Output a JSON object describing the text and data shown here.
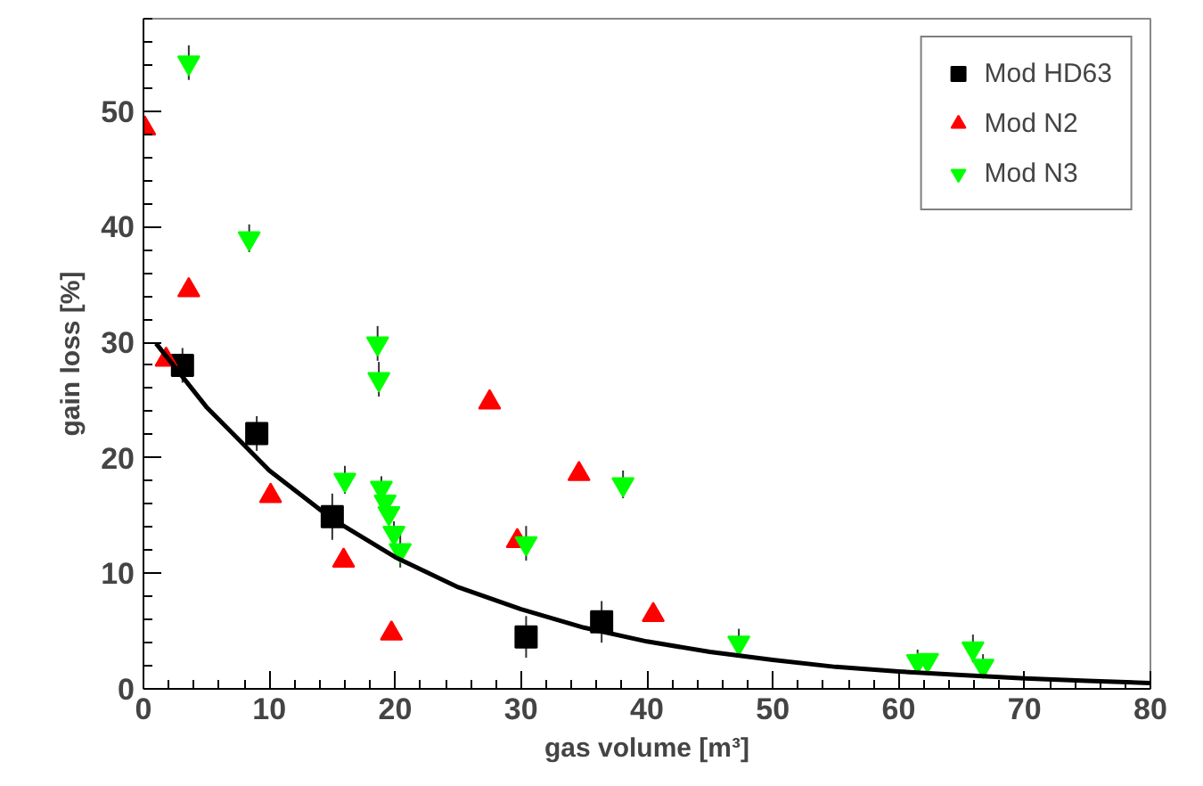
{
  "chart_data": {
    "type": "scatter",
    "xlabel": "gas volume [m³]",
    "ylabel": "gain loss [%]",
    "xlim": [
      0,
      80
    ],
    "ylim": [
      0,
      58
    ],
    "xticks": [
      0,
      10,
      20,
      30,
      40,
      50,
      60,
      70,
      80
    ],
    "yticks": [
      0,
      10,
      20,
      30,
      40,
      50
    ],
    "grid": false,
    "legend": "top right",
    "series": [
      {
        "name": "Mod HD63",
        "color": "#000000",
        "marker": "square",
        "x": [
          3.1,
          9.0,
          15.0,
          30.4,
          36.4
        ],
        "values": [
          28,
          22.1,
          14.9,
          4.5,
          5.8
        ],
        "errors": [
          1.5,
          1.5,
          2,
          1.8,
          1.8
        ]
      },
      {
        "name": "Mod N2",
        "color": "#ff0000",
        "marker": "triangle",
        "x": [
          0.1,
          1.8,
          3.6,
          10.1,
          15.9,
          19.7,
          27.5,
          29.7,
          34.6,
          40.5
        ],
        "values": [
          48.5,
          28.5,
          34.5,
          16.7,
          11.1,
          4.8,
          24.8,
          12.8,
          18.6,
          6.4
        ]
      },
      {
        "name": "Mod N3",
        "color": "#00ff00",
        "x": [
          3.6,
          8.4,
          16.0,
          18.6,
          18.7,
          18.9,
          19.2,
          19.5,
          19.9,
          20.4,
          30.4,
          38.1,
          47.3,
          61.5,
          62.3,
          65.9,
          66.7
        ],
        "values": [
          54.2,
          39,
          18.1,
          29.9,
          26.8,
          17.4,
          16.2,
          15.2,
          13.5,
          12.0,
          12.6,
          17.7,
          4.0,
          2.4,
          2.5,
          3.5,
          2.0
        ],
        "errors": [
          1.5,
          1.2,
          1.2,
          1.5,
          1.5,
          1,
          null,
          null,
          1,
          1.5,
          1.5,
          1.2,
          1.2,
          1,
          null,
          1.2,
          1
        ]
      },
      {
        "type": "line",
        "color": "#000000",
        "marker": "none",
        "x": [
          1,
          5,
          10,
          15,
          20,
          25,
          30,
          35,
          40,
          45,
          50,
          55,
          60,
          65,
          70,
          75,
          80
        ],
        "values": [
          29.9,
          24.4,
          18.9,
          14.7,
          11.4,
          8.8,
          6.9,
          5.3,
          4.1,
          3.2,
          2.5,
          1.9,
          1.5,
          1.2,
          0.9,
          0.7,
          0.5
        ]
      }
    ]
  }
}
